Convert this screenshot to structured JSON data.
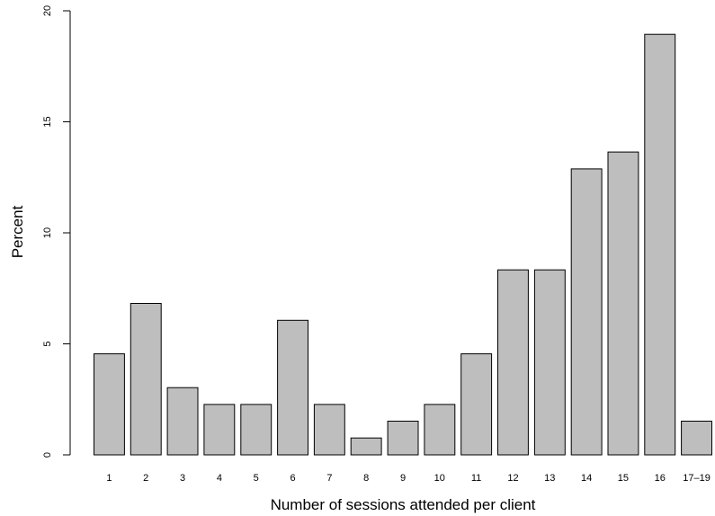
{
  "chart_data": {
    "type": "bar",
    "title": "",
    "xlabel": "Number of sessions attended per client",
    "ylabel": "Percent",
    "categories": [
      "1",
      "2",
      "3",
      "4",
      "5",
      "6",
      "7",
      "8",
      "9",
      "10",
      "11",
      "12",
      "13",
      "14",
      "15",
      "16",
      "17–19"
    ],
    "values": [
      4.55,
      6.82,
      3.03,
      2.27,
      2.27,
      6.06,
      2.27,
      0.76,
      1.52,
      2.27,
      4.55,
      8.33,
      8.33,
      12.88,
      13.64,
      18.94,
      1.52
    ],
    "ylim": [
      0,
      20
    ],
    "yticks": [
      "0",
      "5",
      "10",
      "15",
      "20"
    ],
    "grid": false,
    "colors": {
      "bar_fill": "#bebebe",
      "bar_stroke": "#000000"
    }
  }
}
